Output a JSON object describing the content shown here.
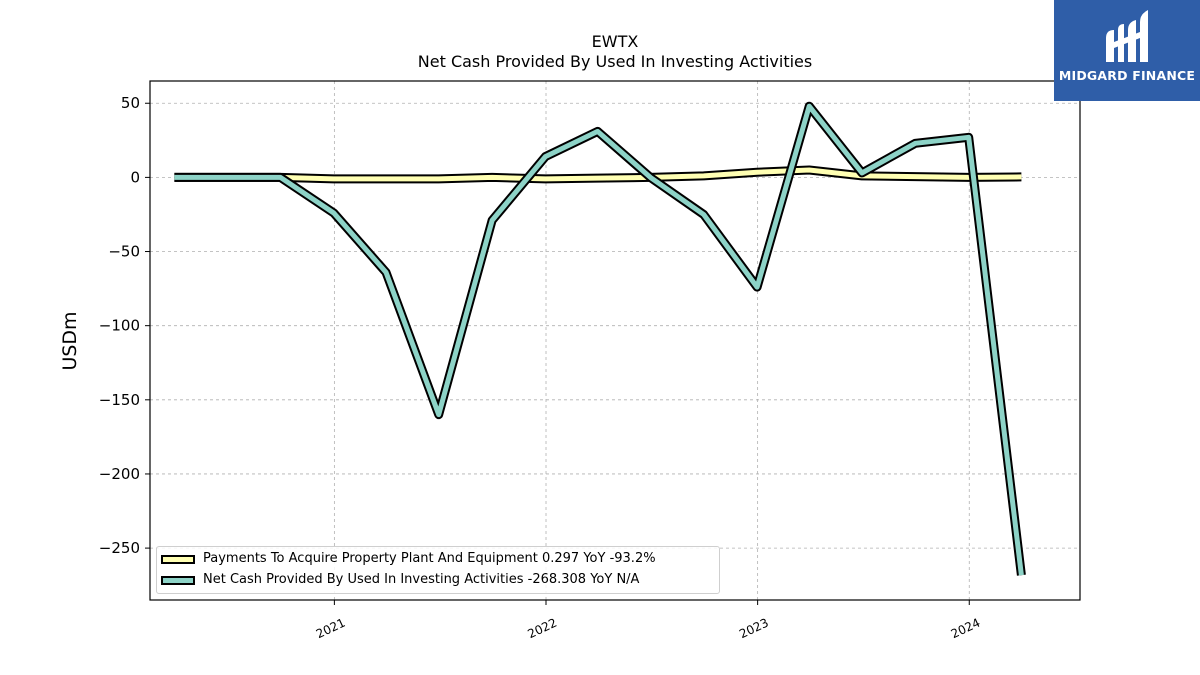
{
  "chart_data": {
    "type": "line",
    "title": "EWTX",
    "subtitle": "Net Cash Provided By Used In Investing Activities",
    "ylabel": "USDm",
    "xlabel": "",
    "ylim": [
      -285,
      65
    ],
    "yticks": [
      50,
      0,
      -50,
      -100,
      -150,
      -200,
      -250
    ],
    "ytick_labels": [
      "50",
      "0",
      "−50",
      "−100",
      "−150",
      "−200",
      "−250"
    ],
    "xticks": [
      "2021-01-01",
      "2022-01-01",
      "2023-01-01",
      "2024-01-01"
    ],
    "xtick_labels": [
      "2021",
      "2022",
      "2023",
      "2024"
    ],
    "xlim": [
      "2020-02-18",
      "2024-07-10"
    ],
    "grid": true,
    "legend_position": "lower-left",
    "x": [
      "2020-03-31",
      "2020-06-30",
      "2020-09-30",
      "2020-12-31",
      "2021-03-31",
      "2021-06-30",
      "2021-09-30",
      "2021-12-31",
      "2022-03-31",
      "2022-06-30",
      "2022-09-30",
      "2022-12-31",
      "2023-03-31",
      "2023-06-30",
      "2023-09-30",
      "2023-12-31",
      "2024-03-31"
    ],
    "series": [
      {
        "name": "Payments To Acquire Property Plant And Equipment  0.297 YoY -93.2%",
        "color": "#ffffb3",
        "values": [
          0,
          0,
          0,
          -1,
          -1,
          -1,
          0,
          -1,
          -0.5,
          0,
          1,
          3.5,
          5,
          1,
          0.5,
          0,
          0.3
        ]
      },
      {
        "name": "Net Cash Provided By Used In Investing Activities  -268.308 YoY N/A",
        "color": "#8dd3c7",
        "values": [
          0,
          0,
          0,
          -24,
          -64,
          -160,
          -29,
          14,
          31,
          0,
          -25,
          -74,
          48,
          3,
          23,
          27,
          -268.3
        ]
      }
    ]
  },
  "logo": {
    "text": "MIDGARD FINANCE",
    "color": "#2f5ea8"
  }
}
